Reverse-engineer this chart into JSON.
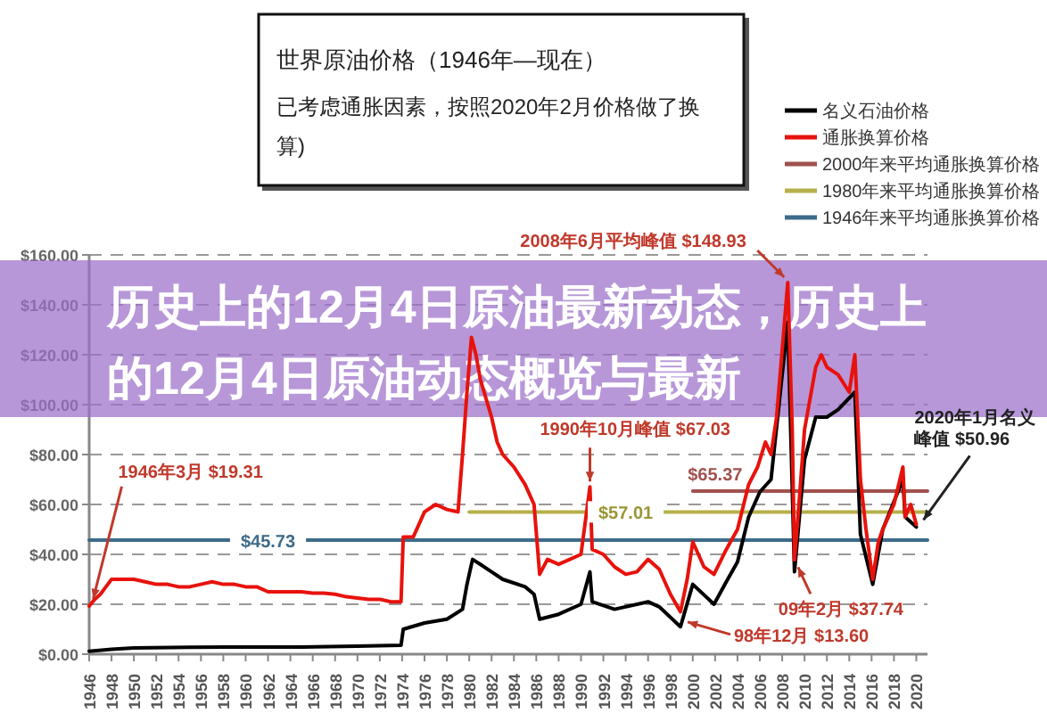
{
  "chart_data": {
    "type": "line",
    "title": "世界原油价格（1946年—现在）",
    "subtitle": "已考虑通胀因素，按照2020年2月价格做了换算)",
    "xlim": [
      1946,
      2021
    ],
    "xticks": [
      1946,
      1948,
      1950,
      1952,
      1954,
      1956,
      1958,
      1960,
      1962,
      1964,
      1966,
      1968,
      1970,
      1972,
      1974,
      1976,
      1978,
      1980,
      1982,
      1984,
      1986,
      1988,
      1990,
      1992,
      1994,
      1996,
      1998,
      2000,
      2002,
      2004,
      2006,
      2008,
      2010,
      2012,
      2014,
      2016,
      2018,
      2020
    ],
    "ylim": [
      0,
      160
    ],
    "yticks": [
      {
        "value": 0,
        "label": "$0.00"
      },
      {
        "value": 20,
        "label": "$20.00"
      },
      {
        "value": 40,
        "label": "$40.00"
      },
      {
        "value": 60,
        "label": "$60.00"
      },
      {
        "value": 80,
        "label": "$80.00"
      },
      {
        "value": 100,
        "label": "$100.00"
      },
      {
        "value": 120,
        "label": "$120.00"
      },
      {
        "value": 140,
        "label": "$140.00"
      },
      {
        "value": 160,
        "label": "$160.00"
      }
    ],
    "grid": "y",
    "legend": "top right",
    "series": [
      {
        "name": "名义石油价格",
        "color": "#000000",
        "x": [
          1946,
          1948,
          1950,
          1955,
          1960,
          1965,
          1970,
          1973.9,
          1974.1,
          1976,
          1978,
          1979.4,
          1979.8,
          1980.3,
          1981,
          1982,
          1983,
          1985,
          1985.8,
          1986.3,
          1988,
          1990,
          1990.8,
          1991,
          1993,
          1996,
          1997,
          1998.9,
          2000,
          2001.9,
          2003,
          2004,
          2005,
          2006,
          2007,
          2008.5,
          2009.1,
          2010,
          2011,
          2012,
          2013,
          2014.5,
          2015,
          2016.1,
          2017,
          2018.8,
          2019,
          2020
        ],
        "values": [
          1.2,
          2,
          2.5,
          2.8,
          2.9,
          2.9,
          3.2,
          3.6,
          10,
          12.5,
          14,
          18,
          28,
          38,
          36,
          33,
          30,
          27,
          24,
          14,
          16,
          20,
          33,
          21,
          18,
          21,
          19,
          11,
          28,
          20,
          29,
          37,
          55,
          65,
          70,
          133,
          33,
          78,
          95,
          95,
          98,
          105,
          48,
          28,
          50,
          70,
          55,
          50.96
        ]
      },
      {
        "name": "通胀换算价格",
        "color": "#e8120c",
        "x": [
          1946,
          1946.5,
          1947,
          1947.5,
          1948,
          1949,
          1950,
          1951,
          1952,
          1953,
          1954,
          1955,
          1956,
          1957,
          1958,
          1959,
          1960,
          1961,
          1962,
          1963,
          1964,
          1965,
          1966,
          1967,
          1968,
          1969,
          1970,
          1971,
          1972,
          1973,
          1973.9,
          1974.1,
          1975,
          1976,
          1977,
          1978,
          1979,
          1979.4,
          1979.8,
          1980.2,
          1980.6,
          1981,
          1982,
          1982.5,
          1983,
          1984,
          1985,
          1985.8,
          1986.3,
          1987,
          1988,
          1989,
          1990,
          1990.8,
          1991,
          1992,
          1993,
          1994,
          1995,
          1996,
          1997,
          1998,
          1998.9,
          1999.5,
          2000,
          2001,
          2001.9,
          2003,
          2004,
          2005,
          2005.8,
          2006.5,
          2007,
          2007.5,
          2008.5,
          2008.9,
          2009.1,
          2009.5,
          2010,
          2011,
          2011.5,
          2012,
          2013,
          2014,
          2014.5,
          2015,
          2015.5,
          2016.1,
          2016.6,
          2017,
          2018,
          2018.8,
          2019,
          2019.5,
          2020
        ],
        "values": [
          19.31,
          22,
          24,
          27,
          30,
          30,
          30,
          29,
          28,
          28,
          27,
          27,
          28,
          29,
          28,
          28,
          27,
          27,
          25,
          25,
          25,
          25,
          24.5,
          24.5,
          24,
          23,
          22.5,
          22,
          22,
          21,
          21,
          47,
          47,
          57,
          60,
          58,
          57,
          80,
          105,
          127,
          120,
          110,
          95,
          85,
          80,
          75,
          68,
          60,
          32,
          38,
          36,
          38,
          40,
          67.03,
          42,
          40,
          35,
          32,
          33,
          38,
          34,
          24,
          17,
          30,
          45,
          35,
          32,
          42,
          50,
          68,
          75,
          85,
          80,
          95,
          148.93,
          90,
          37.74,
          60,
          90,
          115,
          120,
          115,
          112,
          105,
          120,
          70,
          50,
          30,
          45,
          50,
          60,
          75,
          55,
          60,
          52
        ]
      },
      {
        "name": "2000年来平均通胀换算价格",
        "color": "#a0524f",
        "x": [
          2000,
          2021
        ],
        "values": [
          65.37,
          65.37
        ]
      },
      {
        "name": "1980年来平均通胀换算价格",
        "color": "#b5b04a",
        "x": [
          1980,
          2021
        ],
        "values": [
          57.01,
          57.01
        ]
      },
      {
        "name": "1946年来平均通胀换算价格",
        "color": "#3d6b8a",
        "x": [
          1946,
          2021
        ],
        "values": [
          45.73,
          45.73
        ]
      }
    ],
    "annotations": [
      "历史上的12月4日原油最新动态，历史上的12月4日原油动态概览与最新",
      {
        "text": "1946年3月 $19.31",
        "x": 1946.2,
        "y": 19.31
      },
      {
        "text": "$45.73",
        "x": 1962,
        "y": 45.73
      },
      {
        "text": "$57.01",
        "x": 1994,
        "y": 57.01
      },
      {
        "text": "$65.37",
        "x": 2002,
        "y": 65.37
      },
      {
        "text": "1990年10月峰值 $67.03",
        "x": 1990.8,
        "y": 67.03
      },
      {
        "text": "2008年6月平均峰值 $148.93",
        "x": 2008.5,
        "y": 148.93
      },
      {
        "text": "09年2月 $37.74",
        "x": 2009.1,
        "y": 37.74
      },
      {
        "text": "98年12月 $13.60",
        "x": 1998.9,
        "y": 13.6
      },
      {
        "text": "2020年1月名义峰值 $50.96",
        "x": 2020,
        "y": 50.96
      }
    ]
  }
}
